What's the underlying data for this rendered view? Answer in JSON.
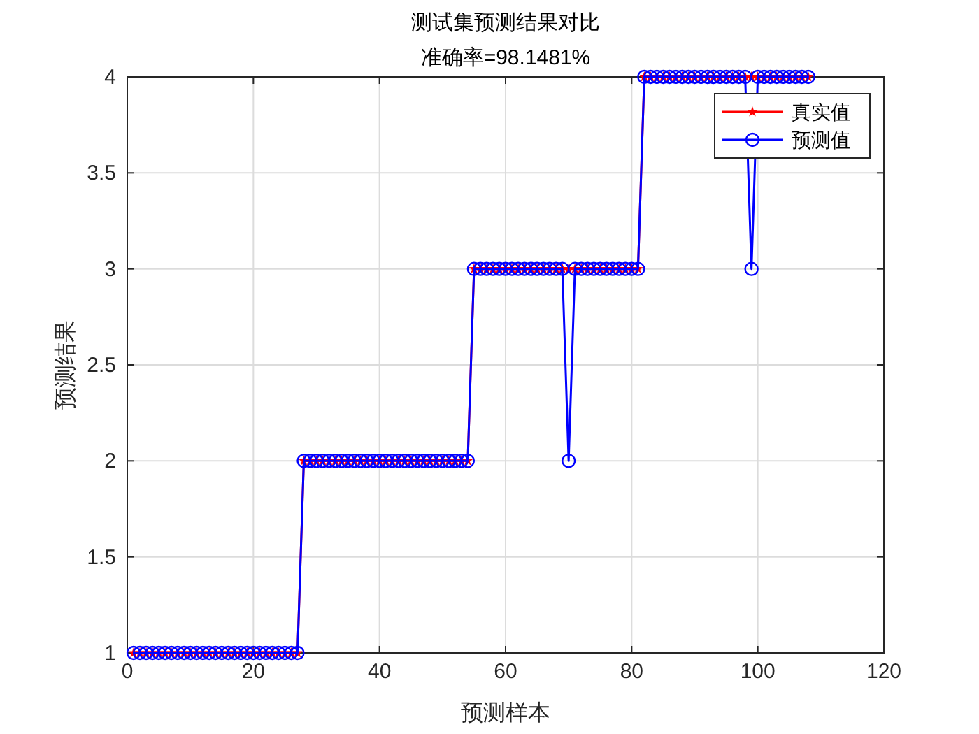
{
  "chart_data": {
    "type": "line",
    "title": "测试集预测结果对比",
    "subtitle": "准确率=98.1481%",
    "xlabel": "预测样本",
    "ylabel": "预测结果",
    "x": [
      1,
      2,
      3,
      4,
      5,
      6,
      7,
      8,
      9,
      10,
      11,
      12,
      13,
      14,
      15,
      16,
      17,
      18,
      19,
      20,
      21,
      22,
      23,
      24,
      25,
      26,
      27,
      28,
      29,
      30,
      31,
      32,
      33,
      34,
      35,
      36,
      37,
      38,
      39,
      40,
      41,
      42,
      43,
      44,
      45,
      46,
      47,
      48,
      49,
      50,
      51,
      52,
      53,
      54,
      55,
      56,
      57,
      58,
      59,
      60,
      61,
      62,
      63,
      64,
      65,
      66,
      67,
      68,
      69,
      70,
      71,
      72,
      73,
      74,
      75,
      76,
      77,
      78,
      79,
      80,
      81,
      82,
      83,
      84,
      85,
      86,
      87,
      88,
      89,
      90,
      91,
      92,
      93,
      94,
      95,
      96,
      97,
      98,
      99,
      100,
      101,
      102,
      103,
      104,
      105,
      106,
      107,
      108
    ],
    "series": [
      {
        "name": "真实值",
        "color": "#ff0000",
        "marker": "star",
        "values": [
          1,
          1,
          1,
          1,
          1,
          1,
          1,
          1,
          1,
          1,
          1,
          1,
          1,
          1,
          1,
          1,
          1,
          1,
          1,
          1,
          1,
          1,
          1,
          1,
          1,
          1,
          1,
          2,
          2,
          2,
          2,
          2,
          2,
          2,
          2,
          2,
          2,
          2,
          2,
          2,
          2,
          2,
          2,
          2,
          2,
          2,
          2,
          2,
          2,
          2,
          2,
          2,
          2,
          2,
          3,
          3,
          3,
          3,
          3,
          3,
          3,
          3,
          3,
          3,
          3,
          3,
          3,
          3,
          3,
          3,
          3,
          3,
          3,
          3,
          3,
          3,
          3,
          3,
          3,
          3,
          3,
          4,
          4,
          4,
          4,
          4,
          4,
          4,
          4,
          4,
          4,
          4,
          4,
          4,
          4,
          4,
          4,
          4,
          4,
          4,
          4,
          4,
          4,
          4,
          4,
          4,
          4,
          4
        ]
      },
      {
        "name": "预测值",
        "color": "#0000ff",
        "marker": "circle",
        "values": [
          1,
          1,
          1,
          1,
          1,
          1,
          1,
          1,
          1,
          1,
          1,
          1,
          1,
          1,
          1,
          1,
          1,
          1,
          1,
          1,
          1,
          1,
          1,
          1,
          1,
          1,
          1,
          2,
          2,
          2,
          2,
          2,
          2,
          2,
          2,
          2,
          2,
          2,
          2,
          2,
          2,
          2,
          2,
          2,
          2,
          2,
          2,
          2,
          2,
          2,
          2,
          2,
          2,
          2,
          3,
          3,
          3,
          3,
          3,
          3,
          3,
          3,
          3,
          3,
          3,
          3,
          3,
          3,
          3,
          2,
          3,
          3,
          3,
          3,
          3,
          3,
          3,
          3,
          3,
          3,
          3,
          4,
          4,
          4,
          4,
          4,
          4,
          4,
          4,
          4,
          4,
          4,
          4,
          4,
          4,
          4,
          4,
          4,
          3,
          4,
          4,
          4,
          4,
          4,
          4,
          4,
          4,
          4
        ]
      }
    ],
    "xlim": [
      0,
      120
    ],
    "xticks": [
      0,
      20,
      40,
      60,
      80,
      100,
      120
    ],
    "ylim": [
      1,
      4
    ],
    "yticks": [
      1,
      1.5,
      2,
      2.5,
      3,
      3.5,
      4
    ],
    "grid": true,
    "legend": "top right",
    "line_style": "solid"
  }
}
